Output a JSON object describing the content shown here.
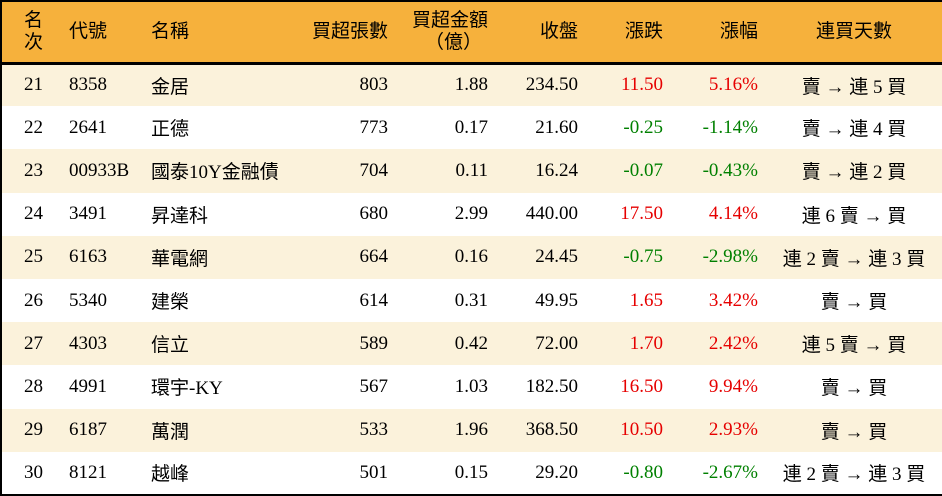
{
  "headers": {
    "rank": "名次",
    "code": "代號",
    "name": "名稱",
    "volume": "買超張數",
    "amount_line1": "買超金額",
    "amount_line2": "（億）",
    "close": "收盤",
    "change": "漲跌",
    "pct": "漲幅",
    "streak": "連買天數"
  },
  "rows": [
    {
      "rank": "21",
      "code": "8358",
      "name": "金居",
      "volume": "803",
      "amount": "1.88",
      "close": "234.50",
      "change": "11.50",
      "pct": "5.16%",
      "streak": "賣 → 連 5 買",
      "direction": "up"
    },
    {
      "rank": "22",
      "code": "2641",
      "name": "正德",
      "volume": "773",
      "amount": "0.17",
      "close": "21.60",
      "change": "-0.25",
      "pct": "-1.14%",
      "streak": "賣 → 連 4 買",
      "direction": "down"
    },
    {
      "rank": "23",
      "code": "00933B",
      "name": "國泰10Y金融債",
      "volume": "704",
      "amount": "0.11",
      "close": "16.24",
      "change": "-0.07",
      "pct": "-0.43%",
      "streak": "賣 → 連 2 買",
      "direction": "down"
    },
    {
      "rank": "24",
      "code": "3491",
      "name": "昇達科",
      "volume": "680",
      "amount": "2.99",
      "close": "440.00",
      "change": "17.50",
      "pct": "4.14%",
      "streak": "連 6 賣 → 買",
      "direction": "up"
    },
    {
      "rank": "25",
      "code": "6163",
      "name": "華電網",
      "volume": "664",
      "amount": "0.16",
      "close": "24.45",
      "change": "-0.75",
      "pct": "-2.98%",
      "streak": "連 2 賣 → 連 3 買",
      "direction": "down"
    },
    {
      "rank": "26",
      "code": "5340",
      "name": "建榮",
      "volume": "614",
      "amount": "0.31",
      "close": "49.95",
      "change": "1.65",
      "pct": "3.42%",
      "streak": "賣 → 買",
      "direction": "up"
    },
    {
      "rank": "27",
      "code": "4303",
      "name": "信立",
      "volume": "589",
      "amount": "0.42",
      "close": "72.00",
      "change": "1.70",
      "pct": "2.42%",
      "streak": "連 5 賣 → 買",
      "direction": "up"
    },
    {
      "rank": "28",
      "code": "4991",
      "name": "環宇-KY",
      "volume": "567",
      "amount": "1.03",
      "close": "182.50",
      "change": "16.50",
      "pct": "9.94%",
      "streak": "賣 → 買",
      "direction": "up"
    },
    {
      "rank": "29",
      "code": "6187",
      "name": "萬潤",
      "volume": "533",
      "amount": "1.96",
      "close": "368.50",
      "change": "10.50",
      "pct": "2.93%",
      "streak": "賣 → 買",
      "direction": "up"
    },
    {
      "rank": "30",
      "code": "8121",
      "name": "越峰",
      "volume": "501",
      "amount": "0.15",
      "close": "29.20",
      "change": "-0.80",
      "pct": "-2.67%",
      "streak": "連 2 賣 → 連 3 買",
      "direction": "down"
    }
  ],
  "colors": {
    "header_bg": "#F6B13C",
    "row_alt_bg": "#FBF2DB",
    "up": "#E60000",
    "down": "#008000",
    "border": "#000000"
  }
}
